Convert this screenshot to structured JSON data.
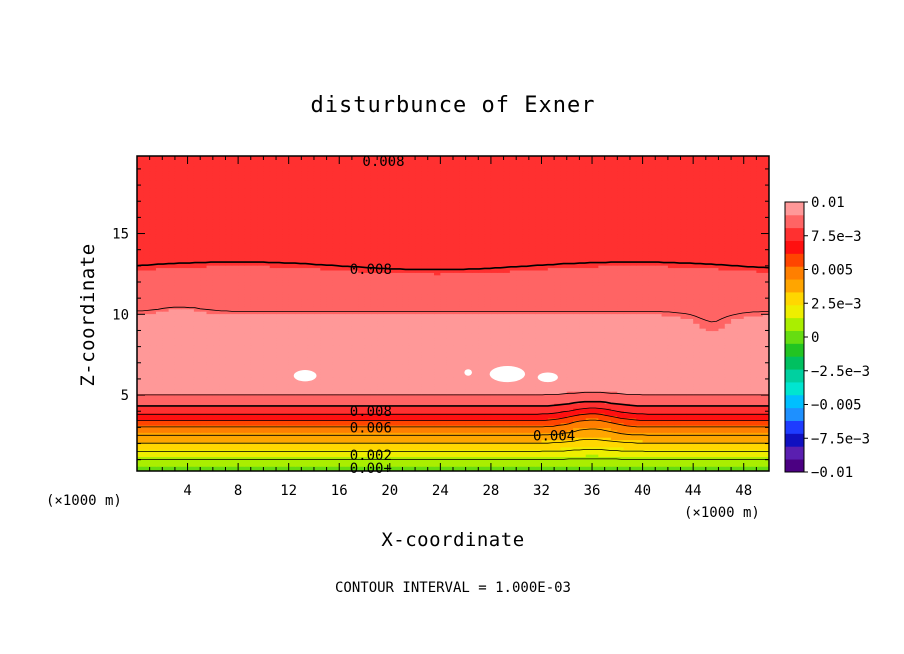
{
  "chart_data": {
    "type": "heatmap",
    "title": "disturbunce of Exner",
    "xlabel": "X-coordinate",
    "ylabel": "Z-coordinate",
    "x_unit_left": "(×1000 m)",
    "x_unit_right": "(×1000 m)",
    "xlim": [
      0,
      50
    ],
    "ylim": [
      0.3,
      19.8
    ],
    "x_ticks": [
      4,
      8,
      12,
      16,
      20,
      24,
      28,
      32,
      36,
      40,
      44,
      48
    ],
    "x_tick_labels": [
      "4",
      "8",
      "12",
      "16",
      "20",
      "24",
      "28",
      "32",
      "36",
      "40",
      "44",
      "48"
    ],
    "y_ticks": [
      5,
      10,
      15
    ],
    "y_tick_labels": [
      "5",
      "10",
      "15"
    ],
    "colorbar": {
      "range": [
        -0.01,
        0.01
      ],
      "tick_values": [
        0.01,
        0.0075,
        0.005,
        0.0025,
        0,
        -0.0025,
        -0.005,
        -0.0075,
        -0.01
      ],
      "tick_labels": [
        "0.01",
        "7.5e−3",
        "0.005",
        "2.5e−3",
        "0",
        "−2.5e−3",
        "−0.005",
        "−7.5e−3",
        "−0.01"
      ],
      "colors": [
        "#4b0082",
        "#5a1fb0",
        "#1010c0",
        "#1e3cff",
        "#1e90ff",
        "#00bfff",
        "#00e5d0",
        "#00d0a0",
        "#00c060",
        "#22c422",
        "#66dd11",
        "#aaee00",
        "#eeee00",
        "#ffd700",
        "#ffa500",
        "#ff7f00",
        "#ff4500",
        "#ff1010",
        "#ff3030",
        "#ff6464",
        "#ff9898"
      ]
    },
    "contour_interval_label": "CONTOUR INTERVAL = 1.000E-03",
    "contour_labels": [
      {
        "text": "0.008",
        "x": 19.5,
        "y": 19.5
      },
      {
        "text": "0.008",
        "x": 18.5,
        "y": 12.8
      },
      {
        "text": "0.008",
        "x": 18.5,
        "y": 4.0
      },
      {
        "text": "0.006",
        "x": 18.5,
        "y": 3.0
      },
      {
        "text": "0.004",
        "x": 33.0,
        "y": 2.5
      },
      {
        "text": "0.002",
        "x": 18.5,
        "y": 1.3
      },
      {
        "text": "0.00+",
        "x": 18.5,
        "y": 0.5
      }
    ],
    "field_profile": [
      {
        "z": 0.3,
        "value": 0.0
      },
      {
        "z": 1.0,
        "value": 0.001
      },
      {
        "z": 1.5,
        "value": 0.002
      },
      {
        "z": 2.0,
        "value": 0.003
      },
      {
        "z": 2.5,
        "value": 0.004
      },
      {
        "z": 3.0,
        "value": 0.005
      },
      {
        "z": 3.4,
        "value": 0.006
      },
      {
        "z": 3.8,
        "value": 0.007
      },
      {
        "z": 4.3,
        "value": 0.008
      },
      {
        "z": 5.0,
        "value": 0.009
      },
      {
        "z": 7.0,
        "value": 0.0098
      },
      {
        "z": 9.5,
        "value": 0.0092
      },
      {
        "z": 11.5,
        "value": 0.0086
      },
      {
        "z": 13.0,
        "value": 0.008
      },
      {
        "z": 17.2,
        "value": 0.0076
      },
      {
        "z": 19.5,
        "value": 0.0072
      }
    ],
    "max_pockets": [
      {
        "x": 13.3,
        "z": 6.2,
        "rx": 0.9,
        "rz": 0.35
      },
      {
        "x": 26.2,
        "z": 6.4,
        "rx": 0.3,
        "rz": 0.2
      },
      {
        "x": 29.3,
        "z": 6.3,
        "rx": 1.4,
        "rz": 0.5
      },
      {
        "x": 32.5,
        "z": 6.1,
        "rx": 0.8,
        "rz": 0.3
      }
    ]
  }
}
